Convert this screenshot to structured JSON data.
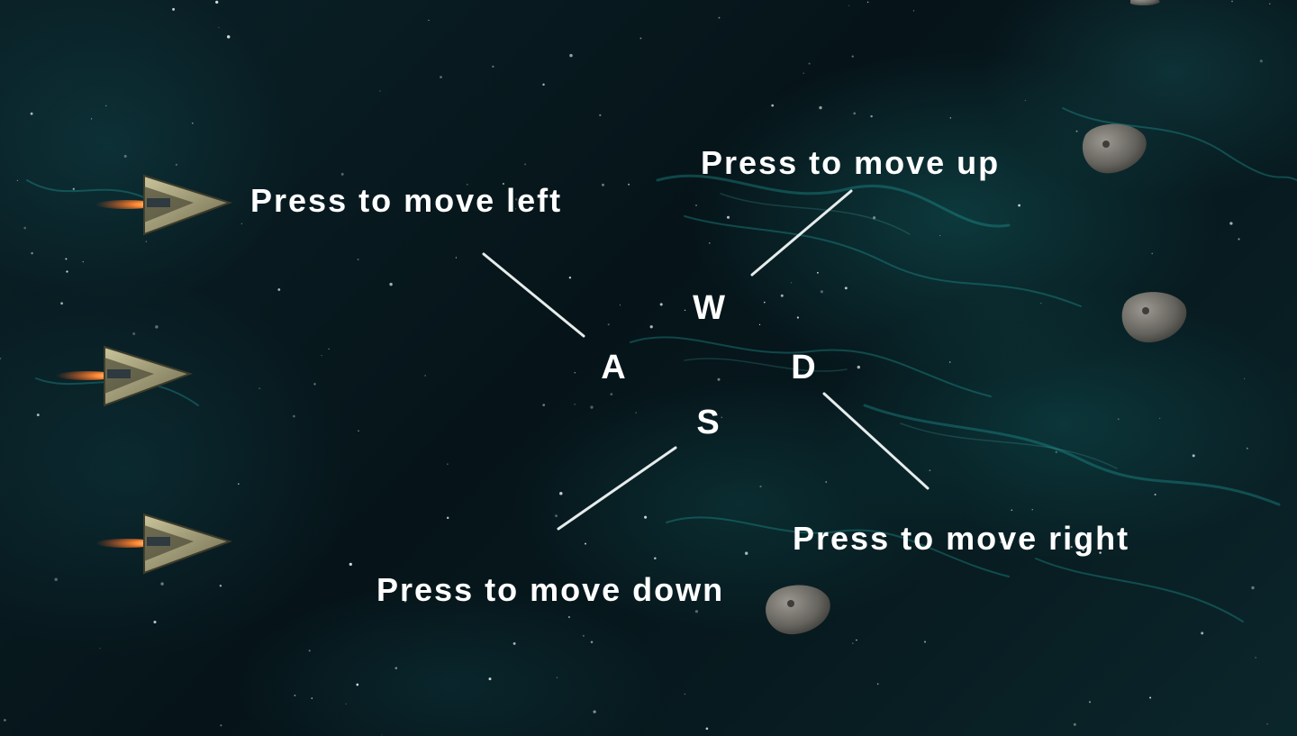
{
  "game": {
    "controls": {
      "up": {
        "key": "W",
        "hint": "Press to move up"
      },
      "left": {
        "key": "A",
        "hint": "Press to move left"
      },
      "right": {
        "key": "D",
        "hint": "Press to move right"
      },
      "down": {
        "key": "S",
        "hint": "Press to move down"
      }
    },
    "player_ships": {
      "count": 3,
      "icon": "spaceship-icon"
    },
    "asteroids": {
      "count": 4,
      "icon": "asteroid-icon"
    }
  },
  "colors": {
    "text": "#ffffff",
    "guide_line": "#e6ecec",
    "nebula": "#1b8f8f",
    "space": "#061419",
    "ship_hull": "#8f8a6a",
    "engine_flame": "#ff7a2e",
    "asteroid": "#6e6c66"
  }
}
